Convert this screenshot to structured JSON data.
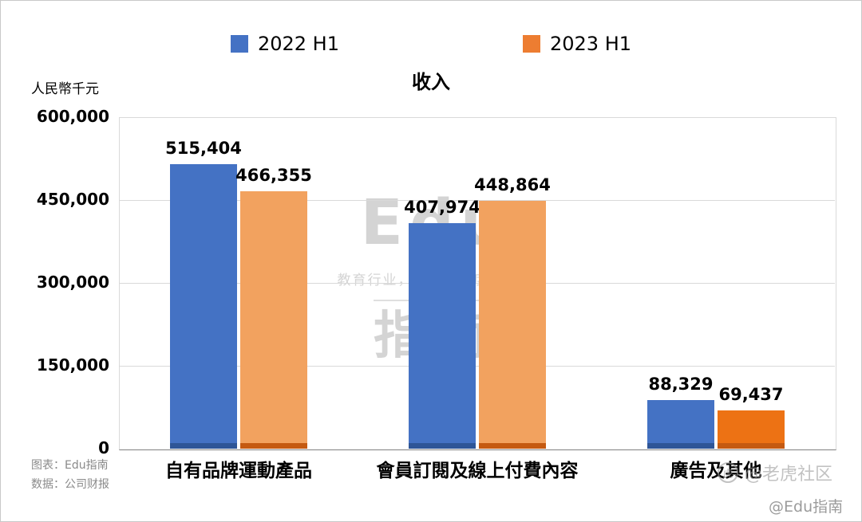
{
  "legend": [
    {
      "label": "2022 H1",
      "color": "#4472C4"
    },
    {
      "label": "2023 H1",
      "color": "#ED7D31"
    }
  ],
  "title": "收入",
  "unit_label": "人民幣千元",
  "chart_data": {
    "type": "bar",
    "title": "收入",
    "ylabel": "人民幣千元",
    "categories": [
      "自有品牌運動產品",
      "會員訂閱及線上付費內容",
      "廣告及其他"
    ],
    "series": [
      {
        "name": "2022 H1",
        "color": "#4472C4",
        "base_color": "#2E5597",
        "values": [
          515404,
          407974,
          88329
        ],
        "labels": [
          "515,404",
          "407,974",
          "88,329"
        ]
      },
      {
        "name": "2023 H1",
        "color": "#F2A25F",
        "bar_colors": [
          "#F2A25F",
          "#F2A25F",
          "#ED7214"
        ],
        "base_color": "#C55A11",
        "values": [
          466355,
          448864,
          69437
        ],
        "labels": [
          "466,355",
          "448,864",
          "69,437"
        ]
      }
    ],
    "ylim": [
      0,
      600000
    ],
    "yticks": [
      0,
      150000,
      300000,
      450000,
      600000
    ],
    "ytick_labels": [
      "0",
      "150,000",
      "300,000",
      "450,000",
      "600,000"
    ],
    "grid": true,
    "legend_position": "top"
  },
  "watermark": {
    "word1": "Edu",
    "slogan": "教育行业，前沿、深度、独家",
    "word2": "指南",
    "tiger_text": "@老虎社区",
    "tiger_glyph": "虎",
    "edu_handle": "@Edu指南"
  },
  "footer": {
    "source_line1": "图表：Edu指南",
    "source_line2": "数据：公司财报"
  }
}
